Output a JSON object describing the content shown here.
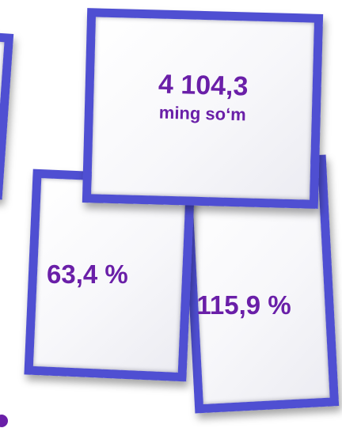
{
  "colors": {
    "frame": "#4f4fd2",
    "text": "#6a1fa8",
    "background": "#ffffff"
  },
  "cards": {
    "amount": {
      "value": "4 104,3",
      "unit": "ming so‘m"
    },
    "percent_left": "63,4 %",
    "percent_right": "115,9 %"
  }
}
